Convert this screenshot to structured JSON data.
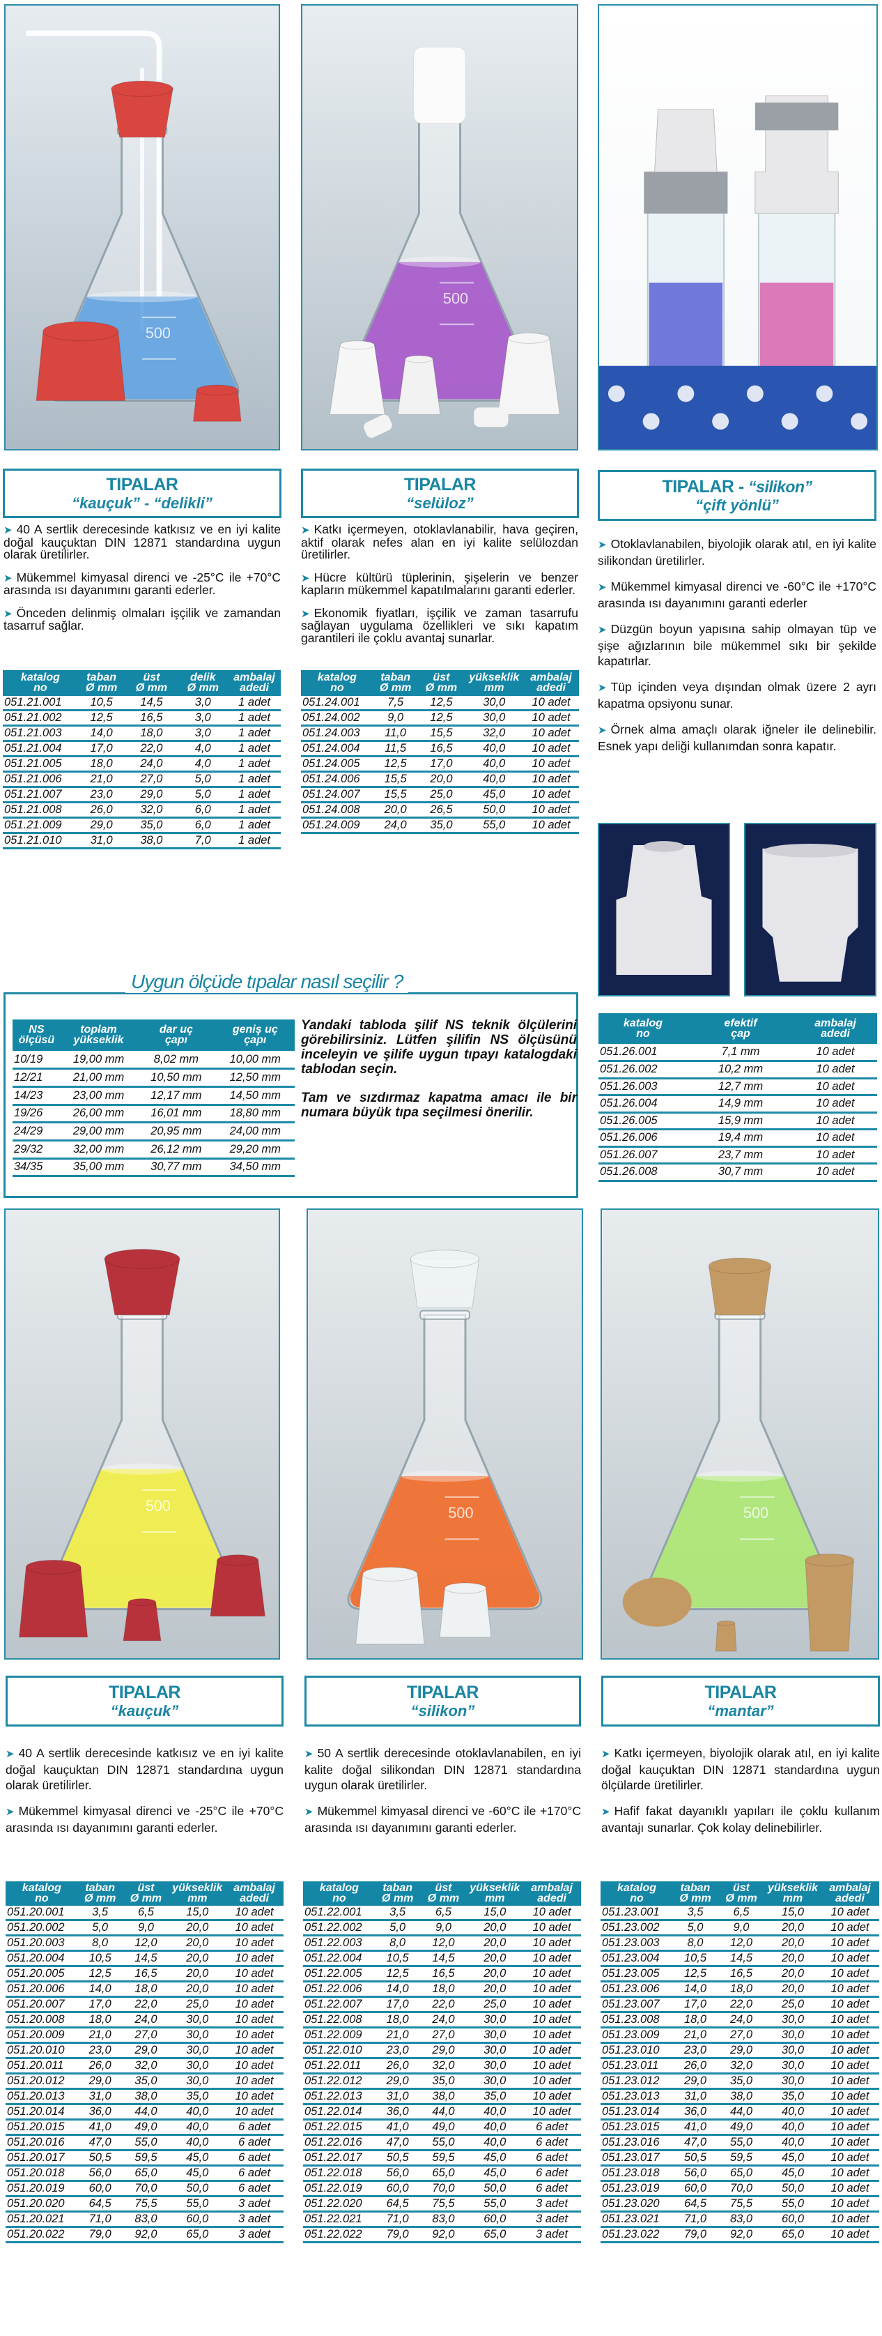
{
  "accent_color": "#1587a6",
  "top": [
    {
      "title": "TIPALAR",
      "subtitle": "“kauçuk” - “delikli”",
      "image": {
        "liquid": "#5a9fe0",
        "stopper": "#d9453f",
        "bg_top": "#e6ecf0",
        "bg_bottom": "#aebbc6"
      },
      "bullets": [
        "40 A sertlik derecesinde katkısız ve en iyi kalite doğal kauçuktan DIN 12871 standardına uygun olarak üretilirler.",
        "Mükemmel kimyasal direnci ve -25°C ile +70°C arasında ısı dayanımını garanti ederler.",
        "Önceden delinmiş olmaları işçilik ve zamandan tasarruf sağlar."
      ],
      "table": {
        "headers": [
          "katalog\nno",
          "taban\nØ mm",
          "üst\nØ mm",
          "delik\nØ mm",
          "ambalaj\nadedi"
        ],
        "rows": [
          [
            "051.21.001",
            "10,5",
            "14,5",
            "3,0",
            "1 adet"
          ],
          [
            "051.21.002",
            "12,5",
            "16,5",
            "3,0",
            "1 adet"
          ],
          [
            "051.21.003",
            "14,0",
            "18,0",
            "3,0",
            "1 adet"
          ],
          [
            "051.21.004",
            "17,0",
            "22,0",
            "4,0",
            "1 adet"
          ],
          [
            "051.21.005",
            "18,0",
            "24,0",
            "4,0",
            "1 adet"
          ],
          [
            "051.21.006",
            "21,0",
            "27,0",
            "5,0",
            "1 adet"
          ],
          [
            "051.21.007",
            "23,0",
            "29,0",
            "5,0",
            "1 adet"
          ],
          [
            "051.21.008",
            "26,0",
            "32,0",
            "6,0",
            "1 adet"
          ],
          [
            "051.21.009",
            "29,0",
            "35,0",
            "6,0",
            "1 adet"
          ],
          [
            "051.21.010",
            "31,0",
            "38,0",
            "7,0",
            "1 adet"
          ]
        ]
      }
    },
    {
      "title": "TIPALAR",
      "subtitle": "“selüloz”",
      "image": {
        "liquid": "#a24fc8",
        "stopper": "#f4f4f4",
        "bg_top": "#e8edf0",
        "bg_bottom": "#b4c0c8"
      },
      "bullets": [
        "Katkı içermeyen, otoklavlanabilir, hava geçiren, aktif olarak nefes alan en iyi kalite selülozdan üretilirler.",
        "Hücre kültürü tüplerinin, şişelerin ve benzer kapların mükemmel kapatılmalarını garanti ederler.",
        "Ekonomik fiyatları, işçilik ve zaman tasarrufu sağlayan uygulama özellikleri ve sıkı kapatım garantileri ile çoklu avantaj sunarlar."
      ],
      "table": {
        "headers": [
          "katalog\nno",
          "taban\nØ mm",
          "üst\nØ mm",
          "yükseklik\nmm",
          "ambalaj\nadedi"
        ],
        "rows": [
          [
            "051.24.001",
            "7,5",
            "12,5",
            "30,0",
            "10 adet"
          ],
          [
            "051.24.002",
            "9,0",
            "12,5",
            "30,0",
            "10 adet"
          ],
          [
            "051.24.003",
            "11,0",
            "15,5",
            "32,0",
            "10 adet"
          ],
          [
            "051.24.004",
            "11,5",
            "16,5",
            "40,0",
            "10 adet"
          ],
          [
            "051.24.005",
            "12,5",
            "17,0",
            "40,0",
            "10 adet"
          ],
          [
            "051.24.006",
            "15,5",
            "20,0",
            "40,0",
            "10 adet"
          ],
          [
            "051.24.007",
            "15,5",
            "25,0",
            "45,0",
            "10 adet"
          ],
          [
            "051.24.008",
            "20,0",
            "26,5",
            "50,0",
            "10 adet"
          ],
          [
            "051.24.009",
            "24,0",
            "35,0",
            "55,0",
            "10 adet"
          ]
        ]
      }
    },
    {
      "title": "TIPALAR - ",
      "title_em": "“silikon”",
      "subtitle": "“çift yönlü”",
      "image": {
        "liquid_left": "#5b63d6",
        "liquid_right": "#d85aa8",
        "rack": "#2a55b0"
      },
      "bullets": [
        "Otoklavlanabilen, biyolojik olarak atıl, en iyi kalite silikondan üretilirler.",
        "Mükemmel kimyasal direnci ve -60°C ile +170°C arasında ısı dayanımını garanti ederler",
        "Düzgün boyun yapısına sahip olmayan tüp ve şişe ağızlarının bile mükemmel sıkı bir şekilde kapatırlar.",
        "Tüp içinden veya dışından olmak üzere 2 ayrı kapatma opsiyonu sunar.",
        "Örnek alma amaçlı olarak iğneler ile delinebilir. Esnek yapı deliği kullanımdan sonra kapatır."
      ],
      "table": {
        "headers": [
          "katalog\nno",
          "efektif\nçap",
          "ambalaj\nadedi"
        ],
        "rows": [
          [
            "051.26.001",
            "7,1 mm",
            "10 adet"
          ],
          [
            "051.26.002",
            "10,2 mm",
            "10 adet"
          ],
          [
            "051.26.003",
            "12,7 mm",
            "10 adet"
          ],
          [
            "051.26.004",
            "14,9 mm",
            "10 adet"
          ],
          [
            "051.26.005",
            "15,9 mm",
            "10 adet"
          ],
          [
            "051.26.006",
            "19,4 mm",
            "10 adet"
          ],
          [
            "051.26.007",
            "23,7 mm",
            "10 adet"
          ],
          [
            "051.26.008",
            "30,7 mm",
            "10 adet"
          ]
        ]
      }
    }
  ],
  "ns_guide": {
    "title": "Uygun ölçüde tıpalar nasıl seçilir ?",
    "headers": [
      "NS\nölçüsü",
      "toplam\nyükseklik",
      "dar uç\nçapı",
      "geniş uç\nçapı"
    ],
    "rows": [
      [
        "10/19",
        "19,00 mm",
        "8,02 mm",
        "10,00 mm"
      ],
      [
        "12/21",
        "21,00 mm",
        "10,50 mm",
        "12,50 mm"
      ],
      [
        "14/23",
        "23,00 mm",
        "12,17 mm",
        "14,50 mm"
      ],
      [
        "19/26",
        "26,00 mm",
        "16,01 mm",
        "18,80 mm"
      ],
      [
        "24/29",
        "29,00 mm",
        "20,95 mm",
        "24,00 mm"
      ],
      [
        "29/32",
        "32,00 mm",
        "26,12 mm",
        "29,20 mm"
      ],
      [
        "34/35",
        "35,00 mm",
        "30,77 mm",
        "34,50 mm"
      ]
    ],
    "paragraphs": [
      "Yandaki tabloda şilif NS teknik ölçülerini görebilirsiniz. Lütfen şilifin NS ölçüsünü inceleyin ve şilife uygun tıpayı katalogdaki tablodan seçin.",
      "Tam ve sızdırmaz kapatma amacı ile bir numara büyük tıpa seçilmesi önerilir."
    ]
  },
  "bottom": [
    {
      "title": "TIPALAR",
      "subtitle": "“kauçuk”",
      "image": {
        "liquid": "#f2ef3a",
        "stopper": "#b8323c"
      },
      "bullets": [
        "40 A sertlik derecesinde katkısız ve en iyi kalite doğal kauçuktan DIN 12871 standardına uygun olarak üretilirler.",
        "Mükemmel kimyasal direnci ve -25°C ile +70°C arasında ısı dayanımını garanti ederler."
      ],
      "table": {
        "headers": [
          "katalog\nno",
          "taban\nØ mm",
          "üst\nØ mm",
          "yükseklik\nmm",
          "ambalaj\nadedi"
        ],
        "rows": [
          [
            "051.20.001",
            "3,5",
            "6,5",
            "15,0",
            "10 adet"
          ],
          [
            "051.20.002",
            "5,0",
            "9,0",
            "20,0",
            "10 adet"
          ],
          [
            "051.20.003",
            "8,0",
            "12,0",
            "20,0",
            "10 adet"
          ],
          [
            "051.20.004",
            "10,5",
            "14,5",
            "20,0",
            "10 adet"
          ],
          [
            "051.20.005",
            "12,5",
            "16,5",
            "20,0",
            "10 adet"
          ],
          [
            "051.20.006",
            "14,0",
            "18,0",
            "20,0",
            "10 adet"
          ],
          [
            "051.20.007",
            "17,0",
            "22,0",
            "25,0",
            "10 adet"
          ],
          [
            "051.20.008",
            "18,0",
            "24,0",
            "30,0",
            "10 adet"
          ],
          [
            "051.20.009",
            "21,0",
            "27,0",
            "30,0",
            "10 adet"
          ],
          [
            "051.20.010",
            "23,0",
            "29,0",
            "30,0",
            "10 adet"
          ],
          [
            "051.20.011",
            "26,0",
            "32,0",
            "30,0",
            "10 adet"
          ],
          [
            "051.20.012",
            "29,0",
            "35,0",
            "30,0",
            "10 adet"
          ],
          [
            "051.20.013",
            "31,0",
            "38,0",
            "35,0",
            "10 adet"
          ],
          [
            "051.20.014",
            "36,0",
            "44,0",
            "40,0",
            "10 adet"
          ],
          [
            "051.20.015",
            "41,0",
            "49,0",
            "40,0",
            "6 adet"
          ],
          [
            "051.20.016",
            "47,0",
            "55,0",
            "40,0",
            "6 adet"
          ],
          [
            "051.20.017",
            "50,5",
            "59,5",
            "45,0",
            "6 adet"
          ],
          [
            "051.20.018",
            "56,0",
            "65,0",
            "45,0",
            "6 adet"
          ],
          [
            "051.20.019",
            "60,0",
            "70,0",
            "50,0",
            "6 adet"
          ],
          [
            "051.20.020",
            "64,5",
            "75,5",
            "55,0",
            "3 adet"
          ],
          [
            "051.20.021",
            "71,0",
            "83,0",
            "60,0",
            "3 adet"
          ],
          [
            "051.20.022",
            "79,0",
            "92,0",
            "65,0",
            "3 adet"
          ]
        ]
      }
    },
    {
      "title": "TIPALAR",
      "subtitle": "“silikon”",
      "image": {
        "liquid": "#f2631c",
        "stopper": "#eef2f2"
      },
      "bullets": [
        "50 A sertlik derecesinde otoklavlanabilen, en iyi kalite doğal silikondan DIN 12871 standardına uygun olarak üretilirler.",
        "Mükemmel kimyasal direnci ve -60°C ile +170°C arasında ısı dayanımını garanti ederler."
      ],
      "table": {
        "headers": [
          "katalog\nno",
          "taban\nØ mm",
          "üst\nØ mm",
          "yükseklik\nmm",
          "ambalaj\nadedi"
        ],
        "rows": [
          [
            "051.22.001",
            "3,5",
            "6,5",
            "15,0",
            "10 adet"
          ],
          [
            "051.22.002",
            "5,0",
            "9,0",
            "20,0",
            "10 adet"
          ],
          [
            "051.22.003",
            "8,0",
            "12,0",
            "20,0",
            "10 adet"
          ],
          [
            "051.22.004",
            "10,5",
            "14,5",
            "20,0",
            "10 adet"
          ],
          [
            "051.22.005",
            "12,5",
            "16,5",
            "20,0",
            "10 adet"
          ],
          [
            "051.22.006",
            "14,0",
            "18,0",
            "20,0",
            "10 adet"
          ],
          [
            "051.22.007",
            "17,0",
            "22,0",
            "25,0",
            "10 adet"
          ],
          [
            "051.22.008",
            "18,0",
            "24,0",
            "30,0",
            "10 adet"
          ],
          [
            "051.22.009",
            "21,0",
            "27,0",
            "30,0",
            "10 adet"
          ],
          [
            "051.22.010",
            "23,0",
            "29,0",
            "30,0",
            "10 adet"
          ],
          [
            "051.22.011",
            "26,0",
            "32,0",
            "30,0",
            "10 adet"
          ],
          [
            "051.22.012",
            "29,0",
            "35,0",
            "30,0",
            "10 adet"
          ],
          [
            "051.22.013",
            "31,0",
            "38,0",
            "35,0",
            "10 adet"
          ],
          [
            "051.22.014",
            "36,0",
            "44,0",
            "40,0",
            "10 adet"
          ],
          [
            "051.22.015",
            "41,0",
            "49,0",
            "40,0",
            "6 adet"
          ],
          [
            "051.22.016",
            "47,0",
            "55,0",
            "40,0",
            "6 adet"
          ],
          [
            "051.22.017",
            "50,5",
            "59,5",
            "45,0",
            "6 adet"
          ],
          [
            "051.22.018",
            "56,0",
            "65,0",
            "45,0",
            "6 adet"
          ],
          [
            "051.22.019",
            "60,0",
            "70,0",
            "50,0",
            "6 adet"
          ],
          [
            "051.22.020",
            "64,5",
            "75,5",
            "55,0",
            "3 adet"
          ],
          [
            "051.22.021",
            "71,0",
            "83,0",
            "60,0",
            "3 adet"
          ],
          [
            "051.22.022",
            "79,0",
            "92,0",
            "65,0",
            "3 adet"
          ]
        ]
      }
    },
    {
      "title": "TIPALAR",
      "subtitle": "“mantar”",
      "image": {
        "liquid": "#a8e66a",
        "stopper": "#c49a64"
      },
      "bullets": [
        "Katkı içermeyen, biyolojik olarak atıl, en iyi kalite doğal kauçuktan DIN 12871 standardına uygun ölçülarde üretilirler.",
        "Hafif fakat dayanıklı yapıları ile çoklu kullanım avantajı sunarlar. Çok kolay delinebilirler."
      ],
      "table": {
        "headers": [
          "katalog\nno",
          "taban\nØ mm",
          "üst\nØ mm",
          "yükseklik\nmm",
          "ambalaj\nadedi"
        ],
        "rows": [
          [
            "051.23.001",
            "3,5",
            "6,5",
            "15,0",
            "10 adet"
          ],
          [
            "051.23.002",
            "5,0",
            "9,0",
            "20,0",
            "10 adet"
          ],
          [
            "051.23.003",
            "8,0",
            "12,0",
            "20,0",
            "10 adet"
          ],
          [
            "051.23.004",
            "10,5",
            "14,5",
            "20,0",
            "10 adet"
          ],
          [
            "051.23.005",
            "12,5",
            "16,5",
            "20,0",
            "10 adet"
          ],
          [
            "051.23.006",
            "14,0",
            "18,0",
            "20,0",
            "10 adet"
          ],
          [
            "051.23.007",
            "17,0",
            "22,0",
            "25,0",
            "10 adet"
          ],
          [
            "051.23.008",
            "18,0",
            "24,0",
            "30,0",
            "10 adet"
          ],
          [
            "051.23.009",
            "21,0",
            "27,0",
            "30,0",
            "10 adet"
          ],
          [
            "051.23.010",
            "23,0",
            "29,0",
            "30,0",
            "10 adet"
          ],
          [
            "051.23.011",
            "26,0",
            "32,0",
            "30,0",
            "10 adet"
          ],
          [
            "051.23.012",
            "29,0",
            "35,0",
            "30,0",
            "10 adet"
          ],
          [
            "051.23.013",
            "31,0",
            "38,0",
            "35,0",
            "10 adet"
          ],
          [
            "051.23.014",
            "36,0",
            "44,0",
            "40,0",
            "10 adet"
          ],
          [
            "051.23.015",
            "41,0",
            "49,0",
            "40,0",
            "10 adet"
          ],
          [
            "051.23.016",
            "47,0",
            "55,0",
            "40,0",
            "10 adet"
          ],
          [
            "051.23.017",
            "50,5",
            "59,5",
            "45,0",
            "10 adet"
          ],
          [
            "051.23.018",
            "56,0",
            "65,0",
            "45,0",
            "10 adet"
          ],
          [
            "051.23.019",
            "60,0",
            "70,0",
            "50,0",
            "10 adet"
          ],
          [
            "051.23.020",
            "64,5",
            "75,5",
            "55,0",
            "10 adet"
          ],
          [
            "051.23.021",
            "71,0",
            "83,0",
            "60,0",
            "10 adet"
          ],
          [
            "051.23.022",
            "79,0",
            "92,0",
            "65,0",
            "10 adet"
          ]
        ]
      }
    }
  ]
}
